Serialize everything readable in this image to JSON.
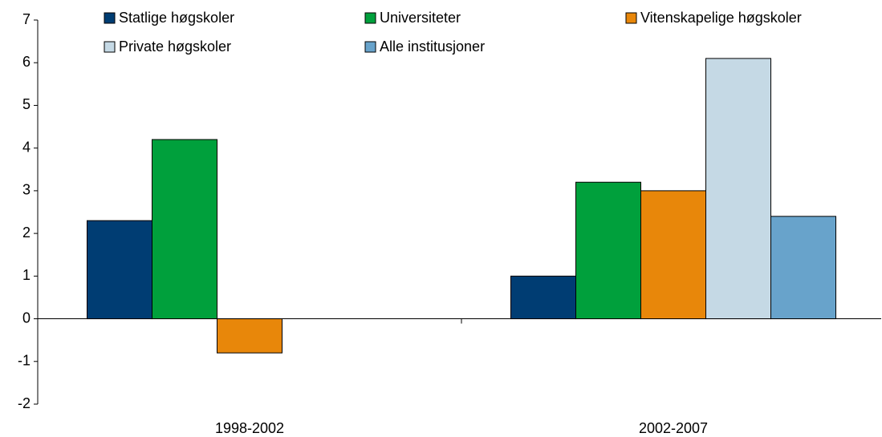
{
  "chart_data": {
    "type": "bar",
    "categories": [
      "1998-2002",
      "2002-2007"
    ],
    "series": [
      {
        "name": "Statlige høgskoler",
        "color": "#003d73",
        "values": [
          2.3,
          1.0
        ]
      },
      {
        "name": "Universiteter",
        "color": "#00a03c",
        "values": [
          4.2,
          3.2
        ]
      },
      {
        "name": "Vitenskapelige høgskoler",
        "color": "#e8870a",
        "values": [
          -0.8,
          3.0
        ]
      },
      {
        "name": "Private høgskoler",
        "color": "#c5d9e5",
        "values": [
          null,
          6.1
        ]
      },
      {
        "name": "Alle institusjoner",
        "color": "#68a3cb",
        "values": [
          null,
          2.4
        ]
      }
    ],
    "ylim": [
      -2,
      7
    ],
    "yticks": [
      -2,
      -1,
      0,
      1,
      2,
      3,
      4,
      5,
      6,
      7
    ],
    "grid": false,
    "legend": "top"
  }
}
